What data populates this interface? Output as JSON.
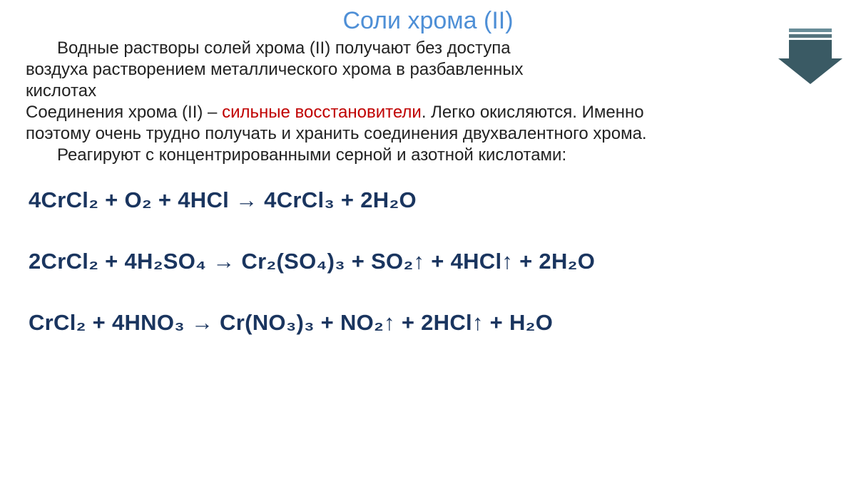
{
  "title": "Соли хрома (II)",
  "prose": {
    "p1a": "Водные растворы солей хрома (II) получают без доступа",
    "p1b": "воздуха растворением металлического хрома в разбавленных",
    "p1c": "кислотах",
    "p2a": "Соединения хрома (II) – ",
    "p2red": "сильные восстановители",
    "p2b": ". Легко окисляются. Именно",
    "p2c": "поэтому очень трудно получать и хранить соединения двухвалентного хрома.",
    "p3": "Реагируют с концентрированными серной и азотной кислотами:"
  },
  "equations": {
    "eq1": "4CrCl₂  +  O₂  +  4HCl  → 4CrCl₃  +  2H₂O",
    "eq2": "2CrCl₂  + 4H₂SO₄ → Cr₂(SO₄)₃  + SO₂↑ + 4HCl↑  +  2H₂O",
    "eq3": "CrCl₂  + 4HNO₃  →  Cr(NO₃)₃  + NO₂↑ + 2HCl↑  +  H₂O"
  },
  "colors": {
    "title": "#4e8fd6",
    "body_text": "#222222",
    "highlight": "#c00000",
    "equation_text": "#1a355f",
    "arrow_bar1": "#698d98",
    "arrow_bar2": "#56747e",
    "arrow_body": "#3a5a64",
    "background": "#ffffff"
  },
  "typography": {
    "title_fontsize": 34,
    "body_fontsize": 24,
    "equation_fontsize": 31,
    "equation_weight": "bold",
    "font_family": "Arial"
  }
}
